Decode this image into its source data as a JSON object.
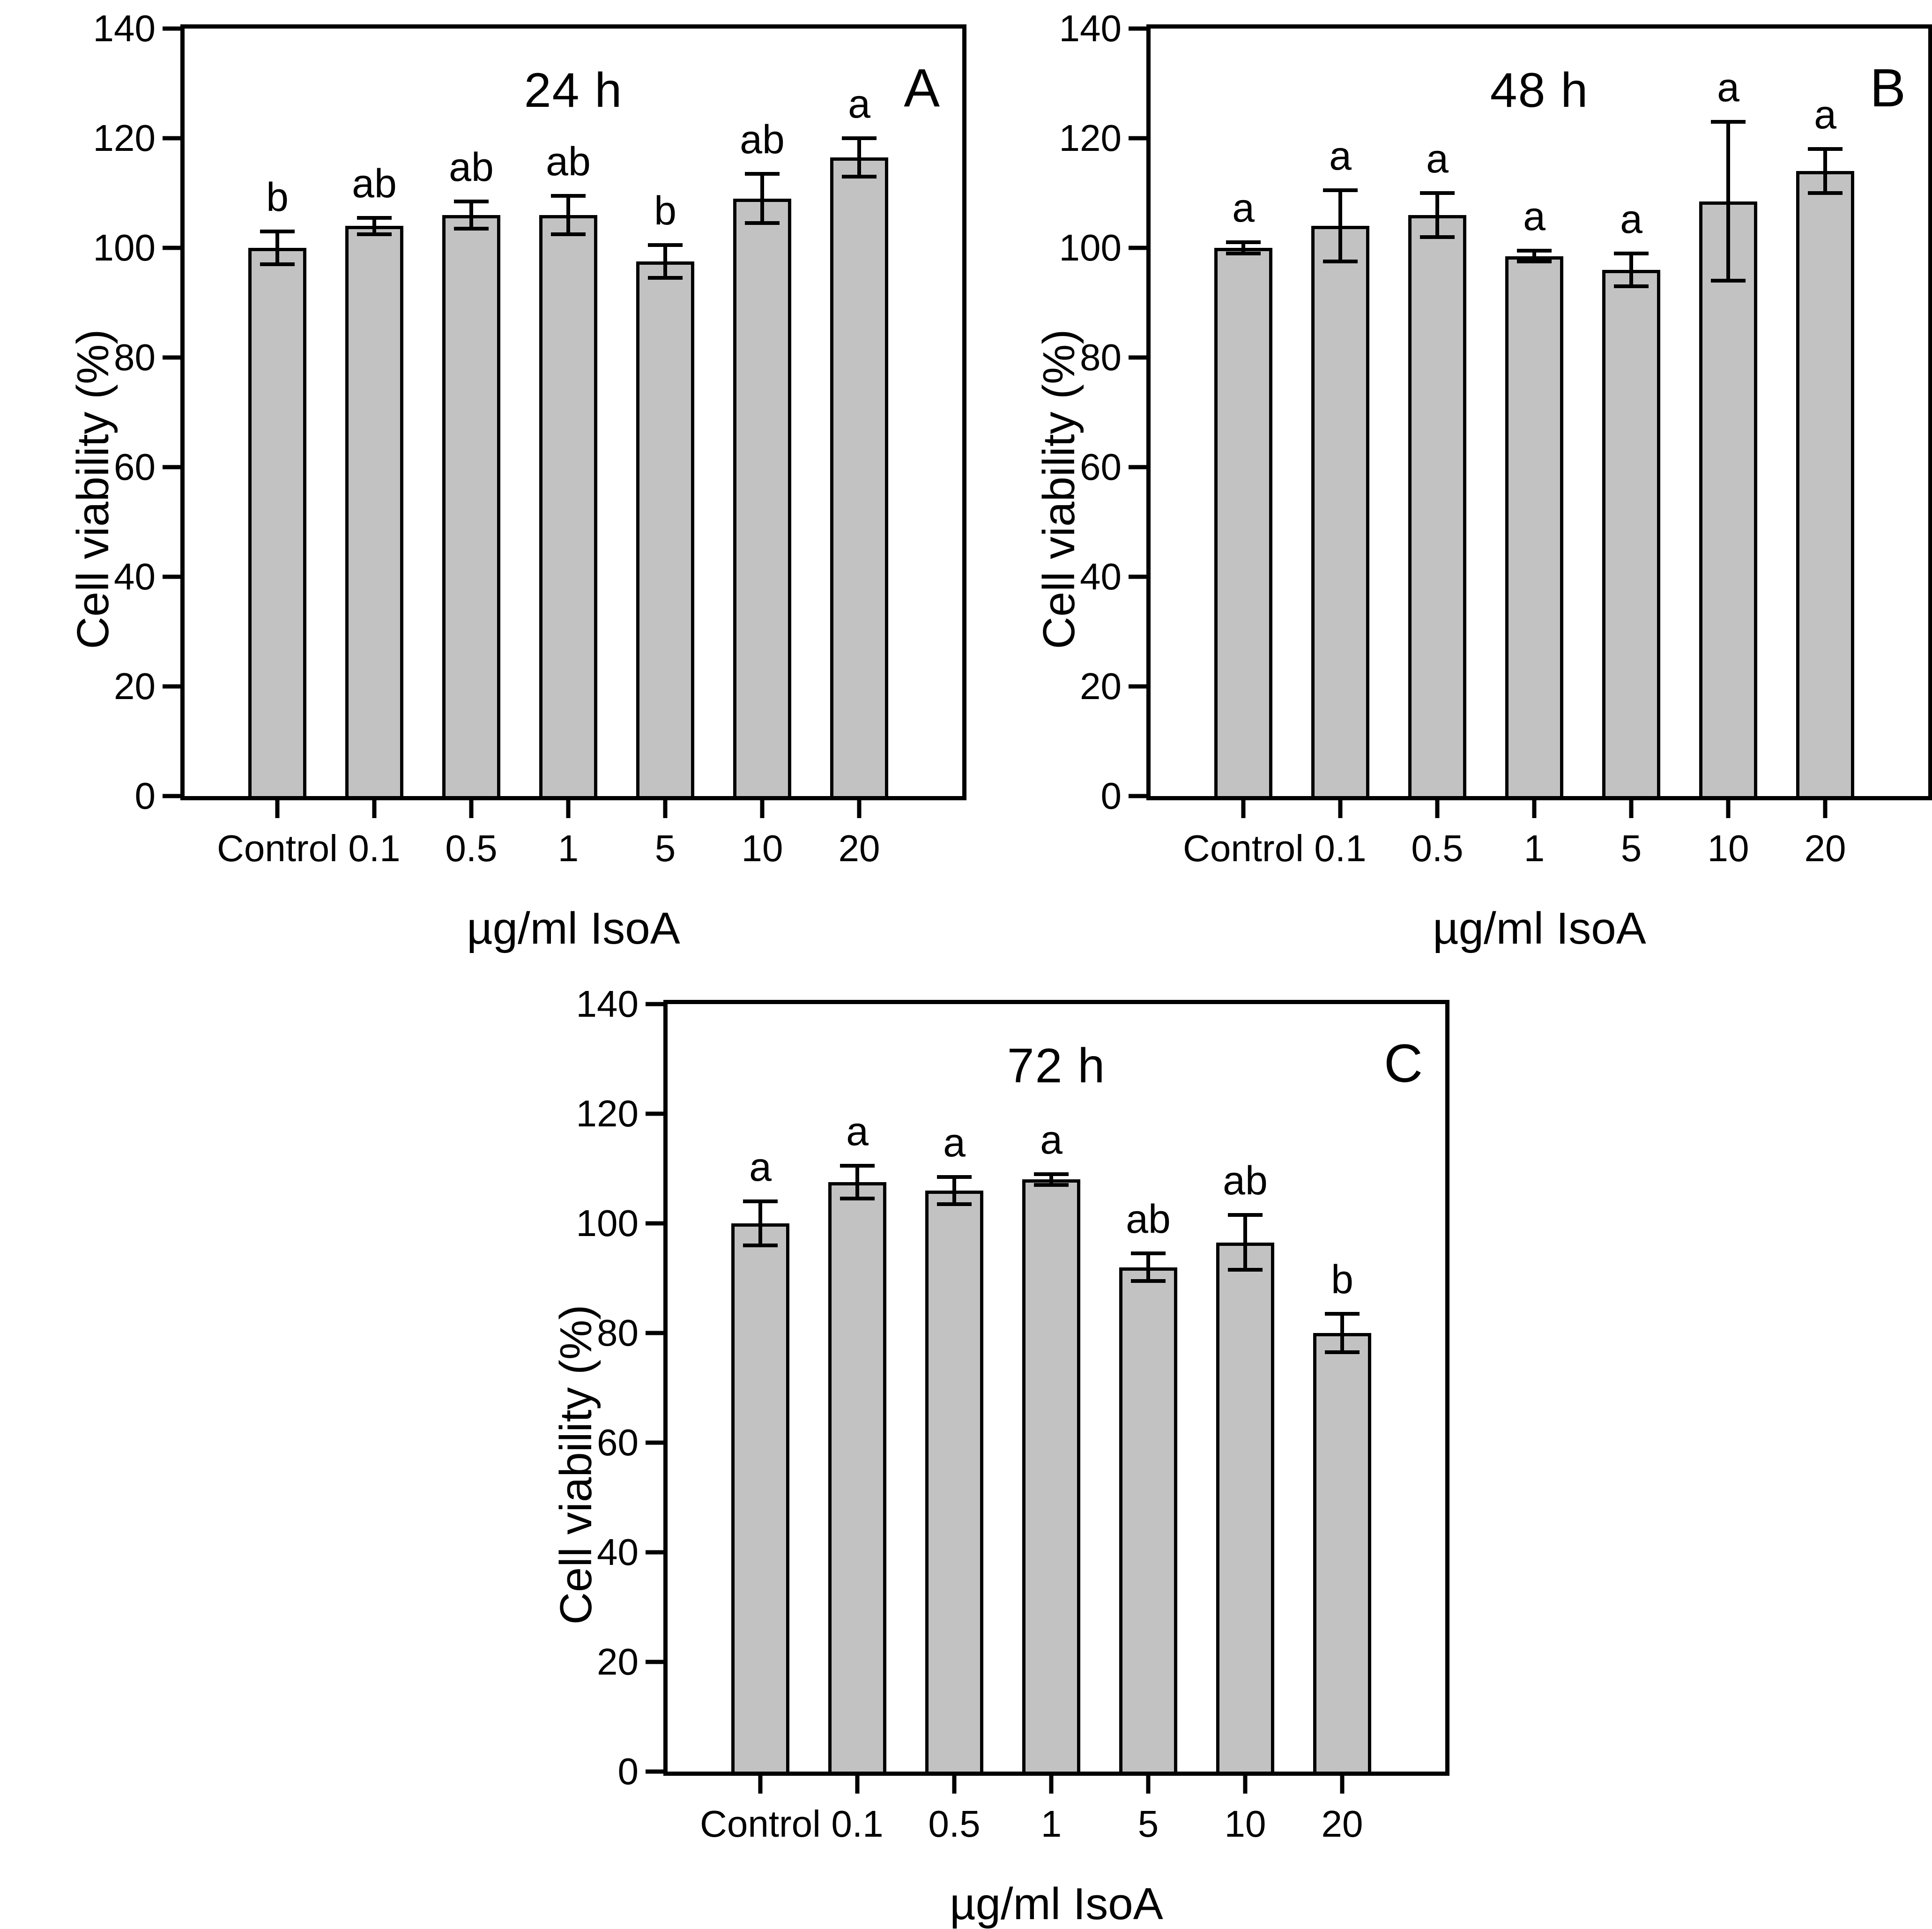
{
  "figure": {
    "background": "#ffffff",
    "bar_fill": "#c2c2c2",
    "line_color": "#000000"
  },
  "chart_data": [
    {
      "type": "bar",
      "panel_letter": "A",
      "title": "24 h",
      "xlabel": "µg/ml IsoA",
      "ylabel": "Cell viability (%)",
      "ylim": [
        0,
        140
      ],
      "yticks": [
        0,
        20,
        40,
        60,
        80,
        100,
        120,
        140
      ],
      "grid": false,
      "categories": [
        "Control",
        "0.1",
        "0.5",
        "1",
        "5",
        "10",
        "20"
      ],
      "values": [
        100,
        104,
        106,
        106,
        97.5,
        109,
        116.5
      ],
      "errors": [
        3,
        1.5,
        2.5,
        3.5,
        3,
        4.5,
        3.5
      ],
      "sig_letters": [
        "b",
        "ab",
        "ab",
        "ab",
        "b",
        "ab",
        "a"
      ]
    },
    {
      "type": "bar",
      "panel_letter": "B",
      "title": "48 h",
      "xlabel": "µg/ml IsoA",
      "ylabel": "Cell viability (%)",
      "ylim": [
        0,
        140
      ],
      "yticks": [
        0,
        20,
        40,
        60,
        80,
        100,
        120,
        140
      ],
      "grid": false,
      "categories": [
        "Control",
        "0.1",
        "0.5",
        "1",
        "5",
        "10",
        "20"
      ],
      "values": [
        100,
        104,
        106,
        98.5,
        96,
        108.5,
        114
      ],
      "errors": [
        1,
        6.5,
        4,
        1,
        3,
        14.5,
        4
      ],
      "sig_letters": [
        "a",
        "a",
        "a",
        "a",
        "a",
        "a",
        "a"
      ]
    },
    {
      "type": "bar",
      "panel_letter": "C",
      "title": "72 h",
      "xlabel": "µg/ml IsoA",
      "ylabel": "Cell viability (%)",
      "ylim": [
        0,
        140
      ],
      "yticks": [
        0,
        20,
        40,
        60,
        80,
        100,
        120,
        140
      ],
      "grid": false,
      "categories": [
        "Control",
        "0.1",
        "0.5",
        "1",
        "5",
        "10",
        "20"
      ],
      "values": [
        100,
        107.5,
        106,
        108,
        92,
        96.5,
        80
      ],
      "errors": [
        4,
        3,
        2.5,
        1,
        2.5,
        5,
        3.5
      ],
      "sig_letters": [
        "a",
        "a",
        "a",
        "a",
        "ab",
        "ab",
        "b"
      ]
    }
  ]
}
